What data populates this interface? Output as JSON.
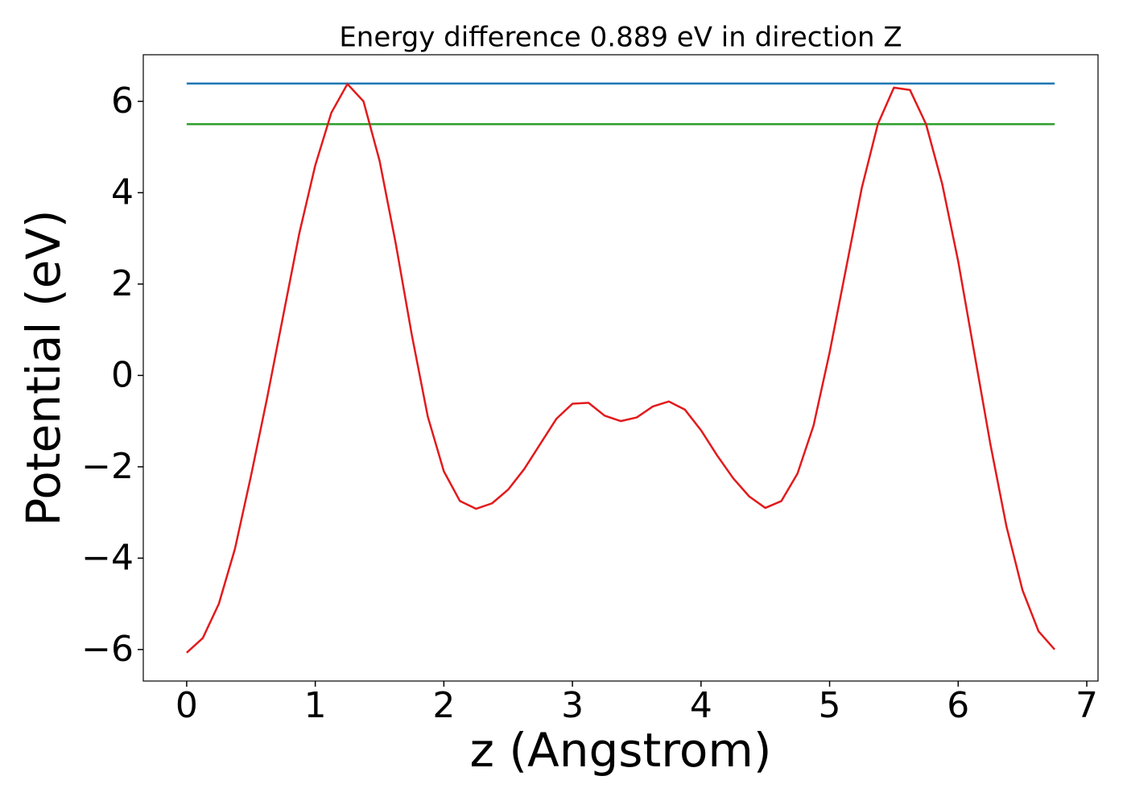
{
  "chart_data": {
    "type": "line",
    "title": "Energy difference 0.889 eV in direction Z",
    "x_label": "z (Angstrom)",
    "y_label": "Potential (eV)",
    "xlim": [
      -0.3375,
      7.0875
    ],
    "ylim": [
      -6.69,
      7.02
    ],
    "xticks": [
      0,
      1,
      2,
      3,
      4,
      5,
      6,
      7
    ],
    "yticks": [
      {
        "value": -6,
        "label": "−6"
      },
      {
        "value": -4,
        "label": "−4"
      },
      {
        "value": -2,
        "label": "−2"
      },
      0,
      2,
      4,
      6
    ],
    "series": [
      {
        "color": "#1f77b4",
        "x": [
          0,
          6.75
        ],
        "values": [
          6.39,
          6.39
        ]
      },
      {
        "color": "#2ca02c",
        "x": [
          0,
          6.75
        ],
        "values": [
          5.5,
          5.5
        ]
      },
      {
        "color": "#e31a1c",
        "x": [
          0,
          0.125,
          0.25,
          0.375,
          0.5,
          0.625,
          0.75,
          0.875,
          1.0,
          1.125,
          1.25,
          1.375,
          1.5,
          1.625,
          1.75,
          1.875,
          2.0,
          2.125,
          2.25,
          2.375,
          2.5,
          2.625,
          2.75,
          2.875,
          3.0,
          3.125,
          3.25,
          3.375,
          3.5,
          3.625,
          3.75,
          3.875,
          4.0,
          4.125,
          4.25,
          4.375,
          4.5,
          4.625,
          4.75,
          4.875,
          5.0,
          5.125,
          5.25,
          5.375,
          5.5,
          5.625,
          5.75,
          5.875,
          6.0,
          6.125,
          6.25,
          6.375,
          6.5,
          6.625,
          6.75
        ],
        "values": [
          -6.07,
          -5.75,
          -5.0,
          -3.8,
          -2.2,
          -0.5,
          1.3,
          3.1,
          4.6,
          5.75,
          6.38,
          6.0,
          4.7,
          2.9,
          0.9,
          -0.9,
          -2.1,
          -2.75,
          -2.92,
          -2.8,
          -2.5,
          -2.05,
          -1.5,
          -0.95,
          -0.62,
          -0.6,
          -0.88,
          -1.0,
          -0.92,
          -0.68,
          -0.57,
          -0.75,
          -1.2,
          -1.75,
          -2.25,
          -2.65,
          -2.9,
          -2.75,
          -2.15,
          -1.1,
          0.5,
          2.3,
          4.1,
          5.5,
          6.3,
          6.25,
          5.5,
          4.2,
          2.5,
          0.5,
          -1.5,
          -3.3,
          -4.7,
          -5.6,
          -6.0
        ]
      }
    ]
  }
}
